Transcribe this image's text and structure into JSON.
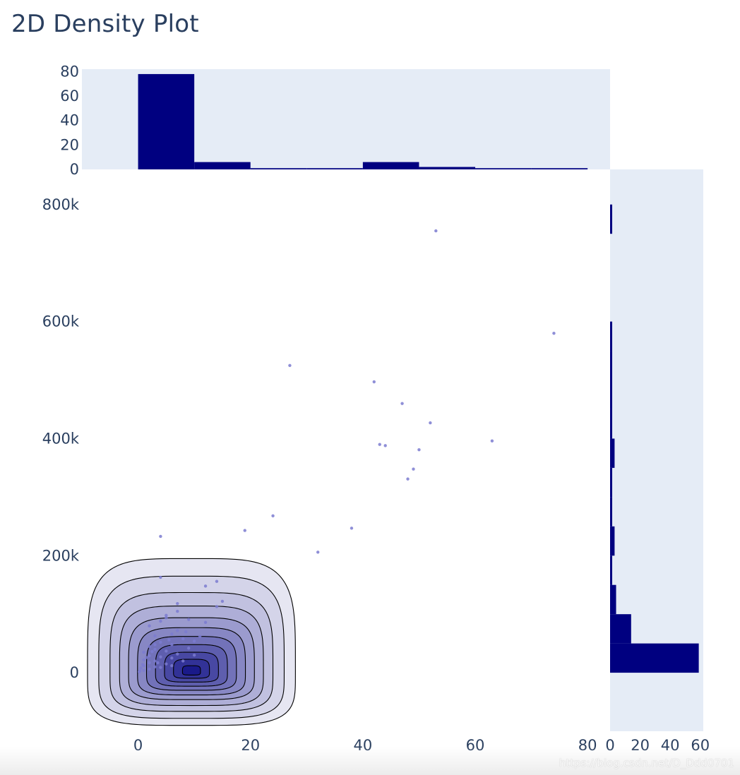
{
  "title": "2D Density Plot",
  "watermark": "https://blog.csdn.net/D_Ddd0701",
  "colors": {
    "bar": "#000080",
    "marginal_bg": "#e5ecf6",
    "scatter": "#7b7bd0",
    "contour_line": "#000000",
    "text": "#2a3f5f"
  },
  "chart_data": [
    {
      "id": "density",
      "type": "density_contour",
      "title": "2D Density Plot",
      "x_range": [
        -10,
        84
      ],
      "y_range": [
        -100000,
        860000
      ],
      "x_ticks": [
        {
          "value": 0,
          "label": "0"
        },
        {
          "value": 20,
          "label": "20"
        },
        {
          "value": 40,
          "label": "40"
        },
        {
          "value": 60,
          "label": "60"
        },
        {
          "value": 80,
          "label": "80"
        }
      ],
      "y_ticks": [
        {
          "value": 0,
          "label": "0"
        },
        {
          "value": 200000,
          "label": "200k"
        },
        {
          "value": 400000,
          "label": "400k"
        },
        {
          "value": 600000,
          "label": "600k"
        },
        {
          "value": 800000,
          "label": "800k"
        }
      ],
      "density_peak": {
        "x": 9.5,
        "y": 2000
      },
      "contour_levels": [
        {
          "rx": 18.5,
          "ry_up": 193000,
          "ry_down": 92000,
          "fill": "#e6e6f2"
        },
        {
          "rx": 16.5,
          "ry_up": 163000,
          "ry_down": 80000,
          "fill": "#d4d4e9"
        },
        {
          "rx": 14.5,
          "ry_up": 135000,
          "ry_down": 68000,
          "fill": "#c1c1e0"
        },
        {
          "rx": 12.8,
          "ry_up": 112000,
          "ry_down": 58000,
          "fill": "#aeaed7"
        },
        {
          "rx": 11.2,
          "ry_up": 92000,
          "ry_down": 48000,
          "fill": "#9b9bce"
        },
        {
          "rx": 9.6,
          "ry_up": 75000,
          "ry_down": 40000,
          "fill": "#8787c4"
        },
        {
          "rx": 8.0,
          "ry_up": 60000,
          "ry_down": 32000,
          "fill": "#7272b9"
        },
        {
          "rx": 6.4,
          "ry_up": 46000,
          "ry_down": 25000,
          "fill": "#5e5eae"
        },
        {
          "rx": 4.8,
          "ry_up": 33000,
          "ry_down": 18000,
          "fill": "#4848a3"
        },
        {
          "rx": 3.2,
          "ry_up": 21000,
          "ry_down": 11500,
          "fill": "#323297"
        },
        {
          "rx": 1.6,
          "ry_up": 10000,
          "ry_down": 6000,
          "fill": "#1a1a8a"
        }
      ],
      "scatter_points": [
        {
          "x": 53,
          "y": 755000
        },
        {
          "x": 74,
          "y": 580000
        },
        {
          "x": 27,
          "y": 525000
        },
        {
          "x": 42,
          "y": 497000
        },
        {
          "x": 47,
          "y": 460000
        },
        {
          "x": 52,
          "y": 427000
        },
        {
          "x": 63,
          "y": 396000
        },
        {
          "x": 43,
          "y": 390000
        },
        {
          "x": 44,
          "y": 388000
        },
        {
          "x": 50,
          "y": 381000
        },
        {
          "x": 49,
          "y": 348000
        },
        {
          "x": 48,
          "y": 331000
        },
        {
          "x": 24,
          "y": 268000
        },
        {
          "x": 38,
          "y": 247000
        },
        {
          "x": 19,
          "y": 243000
        },
        {
          "x": 4,
          "y": 233000
        },
        {
          "x": 32,
          "y": 206000
        },
        {
          "x": 4,
          "y": 163000
        },
        {
          "x": 14,
          "y": 156000
        },
        {
          "x": 12,
          "y": 148000
        },
        {
          "x": 15,
          "y": 122000
        },
        {
          "x": 14,
          "y": 113000
        },
        {
          "x": 7,
          "y": 118000
        },
        {
          "x": 7,
          "y": 105000
        },
        {
          "x": 5,
          "y": 98000
        },
        {
          "x": 5,
          "y": 94000
        },
        {
          "x": 9,
          "y": 91000
        },
        {
          "x": 4,
          "y": 88000
        },
        {
          "x": 12,
          "y": 86000
        },
        {
          "x": 2,
          "y": 80000
        },
        {
          "x": 7,
          "y": 72000
        },
        {
          "x": 6,
          "y": 66000
        },
        {
          "x": 3,
          "y": 63000
        },
        {
          "x": 8,
          "y": 58000
        },
        {
          "x": 10,
          "y": 54000
        },
        {
          "x": 4,
          "y": 52000
        },
        {
          "x": 6,
          "y": 48000
        },
        {
          "x": 2,
          "y": 45000
        },
        {
          "x": 9,
          "y": 42000
        },
        {
          "x": 3,
          "y": 40000
        },
        {
          "x": 5,
          "y": 37000
        },
        {
          "x": 1,
          "y": 35000
        },
        {
          "x": 7,
          "y": 32000
        },
        {
          "x": 2,
          "y": 29000
        },
        {
          "x": 4,
          "y": 27000
        },
        {
          "x": 6,
          "y": 25000
        },
        {
          "x": 1,
          "y": 22000
        },
        {
          "x": 3,
          "y": 20000
        },
        {
          "x": 2,
          "y": 17000
        },
        {
          "x": 5,
          "y": 15000
        },
        {
          "x": 1,
          "y": 12000
        },
        {
          "x": 3,
          "y": 10000
        },
        {
          "x": 0.5,
          "y": 8000
        },
        {
          "x": 2,
          "y": 6000
        },
        {
          "x": 1,
          "y": 4000
        },
        {
          "x": 0.3,
          "y": 3000
        },
        {
          "x": 4,
          "y": 9000
        },
        {
          "x": 6,
          "y": 12000
        },
        {
          "x": 8,
          "y": 20000
        },
        {
          "x": 10,
          "y": 30000
        },
        {
          "x": 3,
          "y": 48000
        },
        {
          "x": 11,
          "y": 62000
        },
        {
          "x": 1.5,
          "y": 26000
        },
        {
          "x": 0.8,
          "y": 14000
        },
        {
          "x": 2.5,
          "y": 36000
        },
        {
          "x": 5.5,
          "y": 56000
        },
        {
          "x": 8.5,
          "y": 70000
        },
        {
          "x": 3.5,
          "y": 17000
        },
        {
          "x": 0.2,
          "y": 1500
        }
      ]
    },
    {
      "id": "top_histogram",
      "type": "bar",
      "orientation": "vertical",
      "x_range": [
        -10,
        84
      ],
      "y_range": [
        0,
        82
      ],
      "y_ticks": [
        {
          "value": 0,
          "label": "0"
        },
        {
          "value": 20,
          "label": "20"
        },
        {
          "value": 40,
          "label": "40"
        },
        {
          "value": 60,
          "label": "60"
        },
        {
          "value": 80,
          "label": "80"
        }
      ],
      "bins": [
        {
          "start": 0,
          "end": 10,
          "count": 78
        },
        {
          "start": 10,
          "end": 20,
          "count": 6
        },
        {
          "start": 20,
          "end": 30,
          "count": 1
        },
        {
          "start": 30,
          "end": 40,
          "count": 1
        },
        {
          "start": 40,
          "end": 50,
          "count": 6
        },
        {
          "start": 50,
          "end": 60,
          "count": 2
        },
        {
          "start": 60,
          "end": 70,
          "count": 1
        },
        {
          "start": 70,
          "end": 80,
          "count": 1
        }
      ]
    },
    {
      "id": "right_histogram",
      "type": "bar",
      "orientation": "horizontal",
      "x_range": [
        0,
        62
      ],
      "x_ticks": [
        {
          "value": 0,
          "label": "0"
        },
        {
          "value": 20,
          "label": "20"
        },
        {
          "value": 40,
          "label": "40"
        },
        {
          "value": 60,
          "label": "60"
        }
      ],
      "bins": [
        {
          "start": 0,
          "end": 50000,
          "count": 59
        },
        {
          "start": 50000,
          "end": 100000,
          "count": 14
        },
        {
          "start": 100000,
          "end": 150000,
          "count": 4
        },
        {
          "start": 150000,
          "end": 200000,
          "count": 1
        },
        {
          "start": 200000,
          "end": 250000,
          "count": 3
        },
        {
          "start": 250000,
          "end": 300000,
          "count": 1
        },
        {
          "start": 300000,
          "end": 350000,
          "count": 1
        },
        {
          "start": 350000,
          "end": 400000,
          "count": 3
        },
        {
          "start": 400000,
          "end": 450000,
          "count": 1
        },
        {
          "start": 450000,
          "end": 500000,
          "count": 1
        },
        {
          "start": 500000,
          "end": 550000,
          "count": 1
        },
        {
          "start": 550000,
          "end": 600000,
          "count": 1
        },
        {
          "start": 750000,
          "end": 800000,
          "count": 1
        }
      ]
    }
  ]
}
